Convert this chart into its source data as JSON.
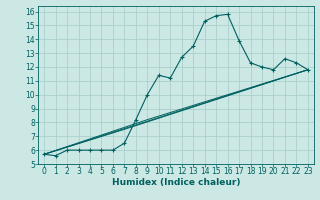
{
  "xlabel": "Humidex (Indice chaleur)",
  "ylabel": "",
  "bg_color": "#cce8e4",
  "grid_color": "#aacfcb",
  "line_color": "#006060",
  "xlim": [
    -0.5,
    23.5
  ],
  "ylim": [
    5,
    16.4
  ],
  "xticks": [
    0,
    1,
    2,
    3,
    4,
    5,
    6,
    7,
    8,
    9,
    10,
    11,
    12,
    13,
    14,
    15,
    16,
    17,
    18,
    19,
    20,
    21,
    22,
    23
  ],
  "yticks": [
    5,
    6,
    7,
    8,
    9,
    10,
    11,
    12,
    13,
    14,
    15,
    16
  ],
  "series1_x": [
    0,
    1,
    2,
    3,
    4,
    5,
    6,
    7,
    8,
    9,
    10,
    11,
    12,
    13,
    14,
    15,
    16,
    17,
    18,
    19,
    20,
    21,
    22,
    23
  ],
  "series1_y": [
    5.7,
    5.6,
    6.0,
    6.0,
    6.0,
    6.0,
    6.0,
    6.5,
    8.2,
    10.0,
    11.4,
    11.2,
    12.7,
    13.5,
    15.3,
    15.7,
    15.8,
    13.9,
    12.3,
    12.0,
    11.8,
    12.6,
    12.3,
    11.8
  ],
  "series2_x": [
    0,
    23
  ],
  "series2_y": [
    5.7,
    11.8
  ],
  "series3_x": [
    0,
    9,
    23
  ],
  "series3_y": [
    5.7,
    8.2,
    11.8
  ],
  "series4_x": [
    0,
    7,
    23
  ],
  "series4_y": [
    5.7,
    7.5,
    11.8
  ]
}
